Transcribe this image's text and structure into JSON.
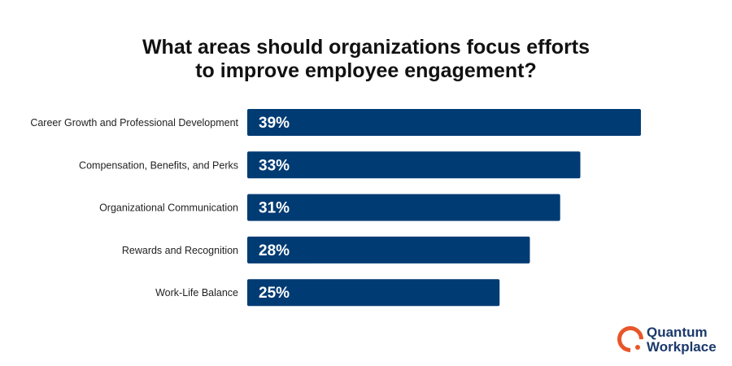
{
  "chart_data": {
    "type": "bar",
    "orientation": "horizontal",
    "title": "What areas should organizations focus efforts to improve employee engagement?",
    "title_lines": [
      "What areas should organizations focus efforts",
      "to improve employee engagement?"
    ],
    "categories": [
      "Career Growth and Professional Development",
      "Compensation, Benefits, and Perks",
      "Organizational Communication",
      "Rewards and Recognition",
      "Work-Life Balance"
    ],
    "values": [
      39,
      33,
      31,
      28,
      25
    ],
    "data_labels": [
      "39%",
      "33%",
      "31%",
      "28%",
      "25%"
    ],
    "unit": "%",
    "xlim": [
      0,
      39
    ],
    "grid": false,
    "bar_color": "#003b73"
  },
  "logo": {
    "line1": "Quantum",
    "line2": "Workplace",
    "accent_color": "#e8562a",
    "text_color": "#1b3a6b"
  }
}
